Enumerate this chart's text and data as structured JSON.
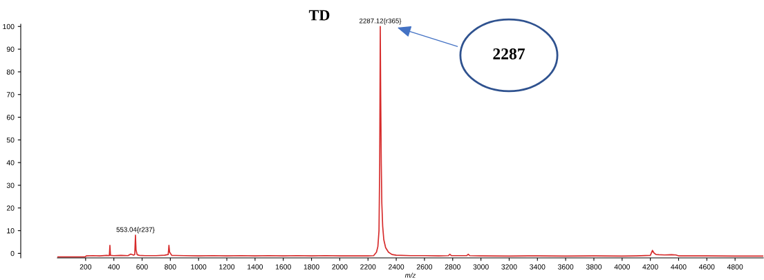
{
  "chart_data": {
    "type": "line",
    "title": "TD",
    "xlabel": "m/z",
    "x": [
      0,
      100,
      195,
      205,
      250,
      300,
      350,
      368,
      372,
      376,
      400,
      450,
      500,
      520,
      540,
      548,
      553,
      557,
      565,
      580,
      620,
      700,
      760,
      785,
      790,
      795,
      810,
      900,
      1000,
      1100,
      1200,
      1300,
      1400,
      1500,
      1600,
      1700,
      1800,
      1900,
      2000,
      2100,
      2200,
      2240,
      2260,
      2270,
      2278,
      2283,
      2287,
      2290,
      2294,
      2298,
      2304,
      2312,
      2325,
      2345,
      2370,
      2400,
      2500,
      2600,
      2700,
      2770,
      2780,
      2790,
      2900,
      2910,
      2920,
      3000,
      3200,
      3400,
      3600,
      3800,
      4000,
      4100,
      4200,
      4215,
      4225,
      4240,
      4260,
      4300,
      4350,
      4380,
      4400,
      4600,
      4800,
      5000
    ],
    "series": [
      {
        "color": "#d62b2b",
        "values": [
          -1.6,
          -1.6,
          -1.6,
          -1.1,
          -1.0,
          -1.1,
          -0.9,
          -1.0,
          3.5,
          -0.9,
          -1.0,
          -0.9,
          -1.0,
          -0.3,
          -0.8,
          -0.5,
          8,
          1.5,
          -0.6,
          -0.9,
          -1.0,
          -1.0,
          -0.8,
          -0.5,
          3.5,
          0.5,
          -0.9,
          -1.0,
          -1.1,
          -1.0,
          -1.1,
          -1.0,
          -1.1,
          -1.0,
          -1.1,
          -1.0,
          -1.1,
          -1.0,
          -1.1,
          -1.1,
          -1.1,
          -1.0,
          0.5,
          3,
          10,
          40,
          100,
          70,
          40,
          22,
          12,
          6,
          2.5,
          0.5,
          -0.5,
          -0.8,
          -1.0,
          -1.0,
          -1.1,
          -1.0,
          -0.4,
          -1.0,
          -1.0,
          -0.4,
          -1.0,
          -1.1,
          -1.2,
          -1.1,
          -1.2,
          -1.1,
          -1.2,
          -1.1,
          -0.9,
          1.3,
          0.2,
          -0.5,
          -0.6,
          -0.7,
          -0.6,
          -0.7,
          -1.1,
          -1.1,
          -1.2,
          -1.2
        ]
      }
    ],
    "xlim": [
      0,
      5000
    ],
    "ylim": [
      -2,
      101
    ],
    "xticks": [
      200,
      400,
      600,
      800,
      1000,
      1200,
      1400,
      1600,
      1800,
      2000,
      2200,
      2400,
      2600,
      2800,
      3000,
      3200,
      3400,
      3600,
      3800,
      4000,
      4200,
      4400,
      4600,
      4800
    ],
    "yticks": [
      0,
      10,
      20,
      30,
      40,
      50,
      60,
      70,
      80,
      90,
      100
    ],
    "annotations": [
      {
        "text": "553.04{r237}",
        "x": 553,
        "y": 8
      },
      {
        "text": "2287.12{r365}",
        "x": 2287,
        "y": 100
      },
      "2287"
    ],
    "grid": false,
    "legend": false,
    "marker": "none",
    "line_style": "solid"
  }
}
